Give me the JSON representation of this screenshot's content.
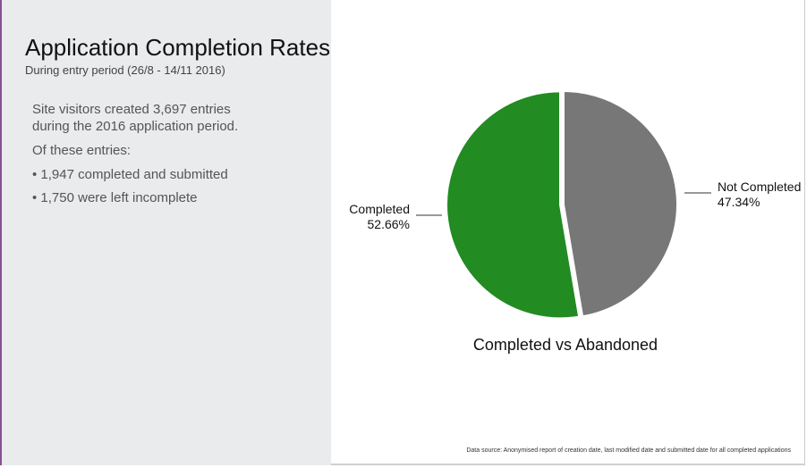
{
  "slide": {
    "title": "Application Completion Rates",
    "subtitle": "During entry period (26/8 - 14/11 2016)",
    "intro": "Site visitors created 3,697 entries during the 2016 application period.",
    "lead": "Of these entries:",
    "bullets": [
      "1,947 completed and submitted",
      "1,750 were left incomplete"
    ],
    "footer": "Data source: Anonymised report of creation date, last modified date and submitted date for all completed applications"
  },
  "chart_data": {
    "type": "pie",
    "title": "Completed vs Abandoned",
    "slices": [
      {
        "label": "Not Completed",
        "value": 47.34,
        "display": "47.34%",
        "color": "#777777"
      },
      {
        "label": "Completed",
        "value": 52.66,
        "display": "52.66%",
        "color": "#228b22"
      }
    ]
  }
}
